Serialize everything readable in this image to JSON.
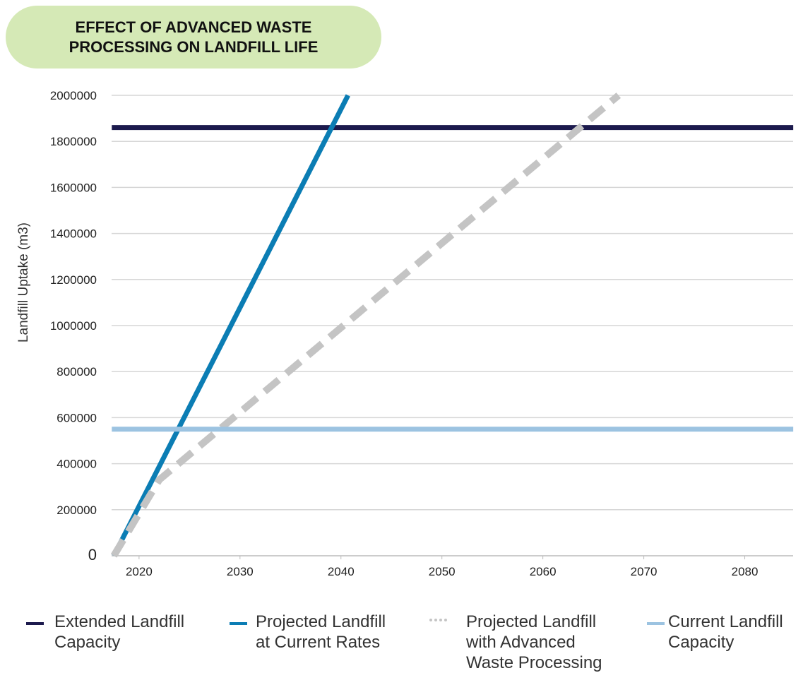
{
  "chart_data": {
    "type": "line",
    "title": "EFFECT OF ADVANCED WASTE PROCESSING ON LANDFILL LIFE",
    "y_label": "Landfill Uptake (m3)",
    "xlim": [
      2017,
      2085
    ],
    "xticks": [
      2020,
      2030,
      2040,
      2050,
      2060,
      2070,
      2080
    ],
    "ylim": [
      0,
      2000000
    ],
    "yticks": [
      0,
      200000,
      400000,
      600000,
      800000,
      1000000,
      1200000,
      1400000,
      1600000,
      1800000,
      2000000
    ],
    "grid": true,
    "legend": "bottom",
    "series": [
      {
        "name": "Extended Landfill Capacity",
        "color": "#1c1a4d",
        "style": "solid",
        "x": [
          2017.3,
          2084.8
        ],
        "values": [
          1860000,
          1860000
        ]
      },
      {
        "name": "Projected Landfill at Current Rates",
        "color": "#0b7db4",
        "style": "solid",
        "x": [
          2017.5,
          2040.7
        ],
        "values": [
          0,
          2000000
        ]
      },
      {
        "name": "Projected Landfill with Advanced Waste Processing",
        "color": "#c4c4c4",
        "style": "dashed",
        "x": [
          2017.5,
          2022,
          2067.5
        ],
        "values": [
          0,
          330000,
          2000000
        ]
      },
      {
        "name": "Current Landfill Capacity",
        "color": "#9cc3e1",
        "style": "solid",
        "x": [
          2017.3,
          2084.8
        ],
        "values": [
          550000,
          550000
        ]
      }
    ]
  }
}
